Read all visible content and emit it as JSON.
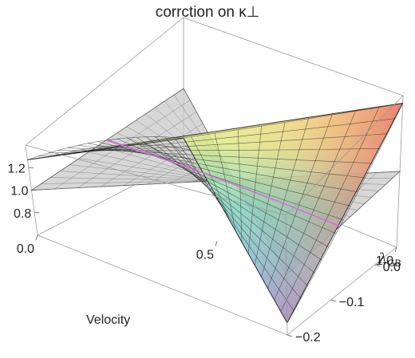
{
  "chart_data": {
    "type": "surface3d",
    "title": "corrction on κ⊥",
    "xlabel": "Velocity",
    "ylabel": "λGB",
    "xlim": [
      0.0,
      1.0
    ],
    "ylim": [
      -0.2,
      0.05
    ],
    "zlim": [
      0.6,
      1.4
    ],
    "x_ticks": [
      "0.0",
      "0.5",
      "1.0"
    ],
    "y_ticks": [
      "−0.2",
      "−0.1",
      "0.0"
    ],
    "z_ticks": [
      "0.8",
      "1.0",
      "1.2"
    ],
    "grid": false,
    "series": [
      {
        "name": "",
        "style": "colored-mesh",
        "corners": {
          "v0_lam_min": 0.72,
          "v0_lam_max": 1.27,
          "v1_lam_min": 0.68,
          "v1_lam_max": 1.36
        },
        "mesh": 16
      },
      {
        "name": "",
        "style": "gray-plane",
        "z": 1.0
      }
    ]
  }
}
